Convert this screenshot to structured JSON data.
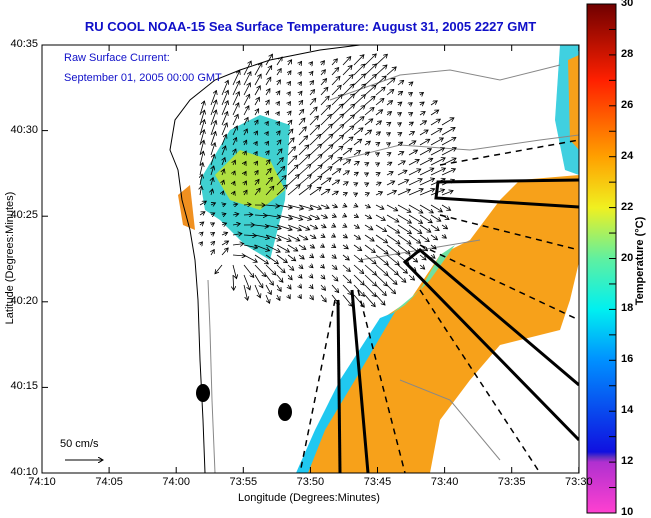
{
  "title": "RU COOL  NOAA-15  Sea Surface Temperature:  August 31, 2005 2227 GMT",
  "annotation": {
    "line1": "Raw Surface Current:",
    "line2": "September 01, 2005 00:00 GMT"
  },
  "scale_label": "50 cm/s",
  "xaxis": {
    "title": "Longitude (Degrees:Minutes)",
    "ticks": [
      "74:10",
      "74:05",
      "74:00",
      "73:55",
      "73:50",
      "73:45",
      "73:40",
      "73:35",
      "73:30"
    ]
  },
  "yaxis": {
    "title": "Latitude (Degrees:Minutes)",
    "ticks": [
      "40:35",
      "40:30",
      "40:25",
      "40:20",
      "40:15",
      "40:10"
    ]
  },
  "colorbar": {
    "title": "Temperature (°C)",
    "min": 10,
    "max": 30,
    "ticks": [
      "30",
      "28",
      "26",
      "24",
      "22",
      "20",
      "18",
      "16",
      "14",
      "12",
      "10"
    ]
  },
  "colors": {
    "title": "#1010c8",
    "sst_warm": "#f7a11a"
  }
}
